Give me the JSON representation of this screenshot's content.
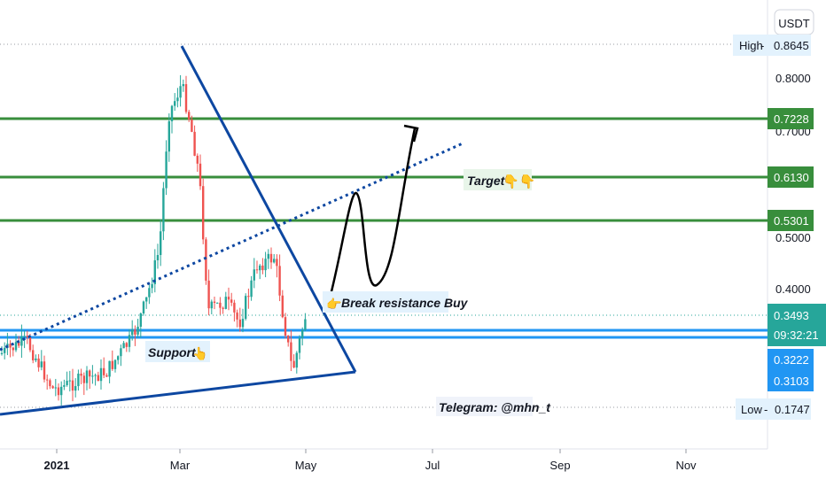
{
  "chart_data": {
    "type": "candlestick",
    "currency": "USDT",
    "x_ticks": [
      "2021",
      "Mar",
      "May",
      "Jul",
      "Sep",
      "Nov"
    ],
    "y_ticks": [
      0.4,
      0.5,
      0.7,
      0.8
    ],
    "y_tick_labels": [
      "0.4000",
      "0.5000",
      "0.7000",
      "0.8000"
    ],
    "high": {
      "label": "High",
      "value": "0.8645"
    },
    "low": {
      "label": "Low",
      "value": "0.1747"
    },
    "current_price": "0.3493",
    "countdown": "09:32:21",
    "levels": [
      {
        "value": "0.7228",
        "color": "#388e3c"
      },
      {
        "value": "0.6130",
        "color": "#388e3c"
      },
      {
        "value": "0.5301",
        "color": "#388e3c"
      },
      {
        "value": "0.3222",
        "color": "#2196f3"
      },
      {
        "value": "0.3103",
        "color": "#2196f3"
      }
    ],
    "annotations": {
      "target": "Target",
      "break": "Break resistance Buy",
      "support": "Support",
      "telegram": "Telegram: @mhn_t"
    },
    "colors": {
      "up": "#26a69a",
      "down": "#ef5350",
      "green_level": "#388e3c",
      "blue_level": "#2196f3",
      "trend": "#0d47a1"
    }
  }
}
